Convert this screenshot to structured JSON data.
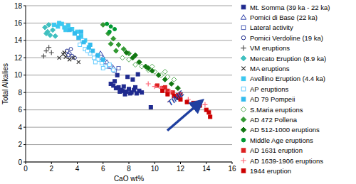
{
  "chart_data": {
    "type": "scatter",
    "x_label": "CaO wt%",
    "y_label": "Total Alkalies",
    "xlim": [
      0,
      16
    ],
    "ylim": [
      0,
      18
    ],
    "xticks": [
      0,
      2,
      4,
      6,
      8,
      10,
      12,
      14,
      16
    ],
    "yticks": [
      0,
      2,
      4,
      6,
      8,
      10,
      12,
      14,
      16,
      18
    ],
    "grid": true,
    "legend": "right",
    "annotations": [
      {
        "text": "TIME",
        "x": 11.2,
        "y": 6.4
      }
    ],
    "series": [
      {
        "name": "Mt. Somma (39 ka - 22 ka)",
        "color": "#1f2a8f",
        "marker": "square",
        "x": [
          6.6,
          6.8,
          7.0,
          7.2,
          7.4,
          7.5,
          7.6,
          7.8,
          8.0,
          8.2,
          8.4,
          8.6,
          8.8,
          9.0,
          7.1,
          7.9,
          8.3,
          8.7,
          6.9,
          7.7,
          9.7,
          8.1,
          7.3,
          8.5
        ],
        "values": [
          9.0,
          8.8,
          8.5,
          8.6,
          8.3,
          8.2,
          8.7,
          8.1,
          8.4,
          8.0,
          8.3,
          7.9,
          8.2,
          8.0,
          10.0,
          9.8,
          9.5,
          10.1,
          9.3,
          7.8,
          6.3,
          7.9,
          8.1,
          8.6
        ]
      },
      {
        "name": "Pomici di Base (22 ka)",
        "color": "#3344aa",
        "marker": "triangle-open",
        "x": [
          5.8,
          6.0,
          6.3,
          6.5,
          5.5,
          6.8
        ],
        "values": [
          12.5,
          12.0,
          11.5,
          11.0,
          12.2,
          10.8
        ]
      },
      {
        "name": "Lateral activity",
        "color": "#5566bb",
        "marker": "square-open",
        "x": [
          6.6,
          6.9,
          7.2
        ],
        "values": [
          11.0,
          10.5,
          10.8
        ]
      },
      {
        "name": "Pomici Verdoline (19 ka)",
        "color": "#1c2a8c",
        "marker": "circle-open",
        "x": [
          3.2,
          3.4,
          3.6,
          3.8,
          3.5,
          3.3
        ],
        "values": [
          12.8,
          12.5,
          12.2,
          12.0,
          13.0,
          12.3
        ]
      },
      {
        "name": "VM eruptions",
        "color": "#555555",
        "marker": "plus",
        "x": [
          1.4,
          1.6,
          1.8,
          2.0
        ],
        "values": [
          12.2,
          12.8,
          13.2,
          12.6
        ]
      },
      {
        "name": "Mercato Eruption (8.9 ka)",
        "color": "#40c0c0",
        "marker": "diamond",
        "x": [
          1.5,
          1.7,
          1.9,
          2.1,
          1.6,
          2.3,
          1.8
        ],
        "values": [
          15.5,
          15.0,
          14.6,
          15.2,
          14.8,
          14.5,
          15.8
        ]
      },
      {
        "name": "MA eruptions",
        "color": "#333333",
        "marker": "x",
        "x": [
          2.6,
          2.9,
          3.1,
          3.4,
          3.7,
          4.1,
          3.0
        ],
        "values": [
          12.0,
          12.4,
          12.1,
          11.8,
          12.0,
          11.5,
          12.6
        ]
      },
      {
        "name": "Avellino Eruption (4.4 ka)",
        "color": "#3cc8f0",
        "marker": "square",
        "x": [
          2.2,
          2.5,
          2.8,
          3.0,
          3.3,
          3.6,
          4.0,
          4.3,
          4.6,
          2.6,
          3.1,
          3.8
        ],
        "values": [
          15.8,
          15.6,
          15.9,
          15.5,
          15.7,
          15.3,
          15.0,
          14.5,
          14.0,
          16.0,
          15.2,
          14.8
        ]
      },
      {
        "name": "AP eruptions",
        "color": "#66ccff",
        "marker": "square-open",
        "x": [
          4.2,
          4.6,
          5.0,
          5.3,
          5.6,
          5.9,
          6.2,
          6.5,
          4.8,
          5.4,
          6.0,
          4.4,
          6.8
        ],
        "values": [
          13.5,
          13.0,
          12.5,
          12.0,
          11.8,
          11.4,
          11.0,
          11.2,
          12.8,
          11.5,
          10.8,
          14.0,
          10.6
        ]
      },
      {
        "name": "AD 79 Pompeii",
        "color": "#33bbee",
        "marker": "square",
        "x": [
          3.4,
          3.8,
          4.1,
          4.5,
          4.9,
          5.2,
          5.6,
          6.0,
          4.3,
          5.0
        ],
        "values": [
          15.2,
          14.8,
          14.3,
          13.8,
          13.2,
          12.8,
          12.3,
          11.8,
          15.0,
          13.5
        ]
      },
      {
        "name": "S.Maria eruptions",
        "color": "#55aa55",
        "marker": "diamond-open",
        "x": [
          7.5,
          8.0,
          8.5,
          9.0,
          9.5,
          10.0,
          10.5,
          11.0,
          11.5,
          8.8,
          9.8,
          10.8
        ],
        "values": [
          12.0,
          11.8,
          11.2,
          11.0,
          10.6,
          10.4,
          10.0,
          9.8,
          9.5,
          11.5,
          11.0,
          10.4
        ]
      },
      {
        "name": "AD 472 Pollena",
        "color": "#339933",
        "marker": "diamond",
        "x": [
          6.0,
          6.4,
          6.8,
          7.2,
          7.6,
          8.0,
          6.6,
          7.0
        ],
        "values": [
          15.8,
          14.8,
          14.2,
          13.5,
          13.0,
          12.5,
          13.6,
          12.8
        ]
      },
      {
        "name": "AD 512-1000 eruptions",
        "color": "#117711",
        "marker": "diamond",
        "x": [
          7.8,
          8.3,
          8.8,
          9.3,
          9.8,
          10.3,
          10.8,
          11.3,
          8.5,
          9.5,
          11.8
        ],
        "values": [
          12.6,
          12.0,
          11.5,
          11.0,
          10.5,
          10.0,
          9.5,
          9.0,
          12.3,
          10.8,
          8.5
        ]
      },
      {
        "name": "Middle Age eruptions",
        "color": "#009933",
        "marker": "circle",
        "x": [
          6.3,
          6.6,
          6.9,
          6.5
        ],
        "values": [
          15.9,
          15.6,
          15.3,
          15.0
        ]
      },
      {
        "name": "AD 1631 eruption",
        "color": "#dd2222",
        "marker": "square",
        "x": [
          10.2,
          10.6,
          11.0,
          11.4,
          11.8,
          12.0,
          10.8
        ],
        "values": [
          8.8,
          8.5,
          8.2,
          8.0,
          7.7,
          7.8,
          8.6
        ]
      },
      {
        "name": "AD 1639-1906 eruptions",
        "color": "#ff6677",
        "marker": "plus",
        "x": [
          9.5,
          10.0,
          10.5,
          11.2,
          12.0,
          12.6,
          13.2,
          13.9
        ],
        "values": [
          9.0,
          8.7,
          8.5,
          8.1,
          7.6,
          7.2,
          6.8,
          6.6
        ]
      },
      {
        "name": "1944 eruption",
        "color": "#cc0000",
        "marker": "square",
        "x": [
          10.6,
          11.0,
          11.5,
          12.0,
          12.5,
          13.0,
          13.5,
          14.0,
          14.2,
          14.3,
          11.8
        ],
        "values": [
          8.2,
          7.8,
          7.6,
          7.2,
          6.9,
          6.8,
          6.5,
          6.0,
          5.7,
          5.2,
          7.4
        ]
      }
    ]
  }
}
